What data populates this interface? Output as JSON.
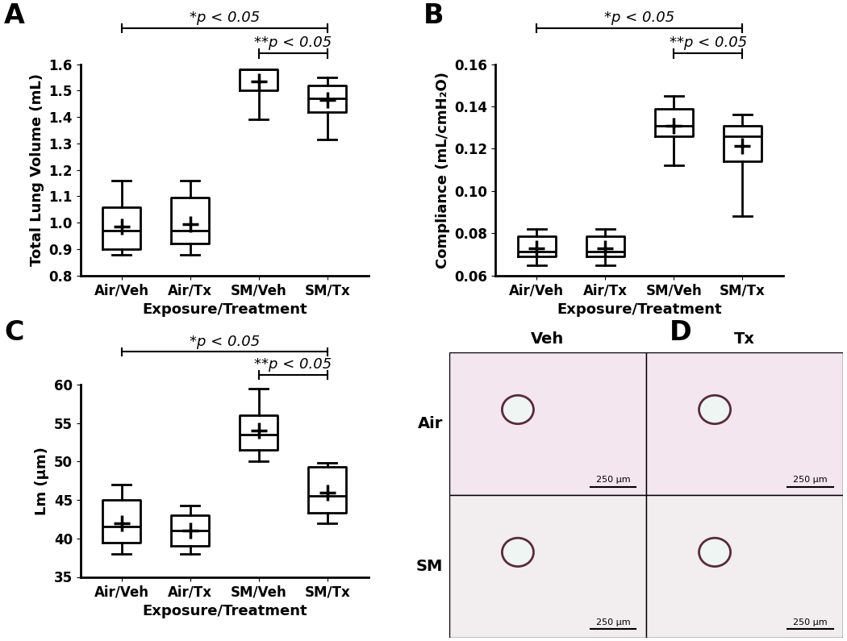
{
  "chart_data": [
    {
      "type": "box",
      "panel": "A",
      "ylabel": "Total Lung Volume (mL)",
      "xlabel": "Exposure/Treatment",
      "categories": [
        "Air/Veh",
        "Air/Tx",
        "SM/Veh",
        "SM/Tx"
      ],
      "boxes": [
        {
          "whislo": 0.88,
          "q1": 0.9,
          "med": 0.97,
          "q3": 1.06,
          "whishi": 1.16,
          "mean": 0.985
        },
        {
          "whislo": 0.88,
          "q1": 0.92,
          "med": 0.97,
          "q3": 1.095,
          "whishi": 1.16,
          "mean": 0.995
        },
        {
          "whislo": 1.39,
          "q1": 1.5,
          "med": 1.58,
          "q3": 1.58,
          "whishi": 1.58,
          "mean": 1.535
        },
        {
          "whislo": 1.315,
          "q1": 1.42,
          "med": 1.47,
          "q3": 1.52,
          "whishi": 1.55,
          "mean": 1.465
        }
      ],
      "ylim": [
        0.8,
        1.6
      ],
      "yticks": [
        0.8,
        0.9,
        {
          "value": 1,
          "label": "1.0"
        },
        1.1,
        1.2,
        1.3,
        1.4,
        1.5,
        1.6
      ],
      "annotations": [
        {
          "text": "*p < 0.05",
          "from": "Air/Veh",
          "to": "SM/Tx"
        },
        {
          "text": "**p < 0.05",
          "from": "SM/Veh",
          "to": "SM/Tx"
        }
      ]
    },
    {
      "type": "box",
      "panel": "B",
      "ylabel": "Compliance (mL/cmH₂O)",
      "xlabel": "Exposure/Treatment",
      "categories": [
        "Air/Veh",
        "Air/Tx",
        "SM/Veh",
        "SM/Tx"
      ],
      "boxes": [
        {
          "whislo": 0.065,
          "q1": 0.069,
          "med": 0.0715,
          "q3": 0.0785,
          "whishi": 0.082,
          "mean": 0.073
        },
        {
          "whislo": 0.065,
          "q1": 0.069,
          "med": 0.0715,
          "q3": 0.0785,
          "whishi": 0.082,
          "mean": 0.073
        },
        {
          "whislo": 0.112,
          "q1": 0.126,
          "med": 0.131,
          "q3": 0.139,
          "whishi": 0.145,
          "mean": 0.131
        },
        {
          "whislo": 0.088,
          "q1": 0.114,
          "med": 0.126,
          "q3": 0.131,
          "whishi": 0.136,
          "mean": 0.1215
        }
      ],
      "ylim": [
        0.06,
        0.16
      ],
      "yticks": [
        0.06,
        0.08,
        {
          "value": 0.1,
          "label": "0.10"
        },
        0.12,
        0.14,
        0.16
      ],
      "annotations": [
        {
          "text": "*p < 0.05",
          "from": "Air/Veh",
          "to": "SM/Tx"
        },
        {
          "text": "**p < 0.05",
          "from": "SM/Veh",
          "to": "SM/Tx"
        }
      ]
    },
    {
      "type": "box",
      "panel": "C",
      "ylabel": "Lm (μm)",
      "xlabel": "Exposure/Treatment",
      "categories": [
        "Air/Veh",
        "Air/Tx",
        "SM/Veh",
        "SM/Tx"
      ],
      "boxes": [
        {
          "whislo": 38,
          "q1": 39.5,
          "med": 41.5,
          "q3": 45,
          "whishi": 47,
          "mean": 42
        },
        {
          "whislo": 38,
          "q1": 39,
          "med": 41,
          "q3": 43,
          "whishi": 44.3,
          "mean": 41
        },
        {
          "whislo": 50,
          "q1": 51.5,
          "med": 53.5,
          "q3": 56,
          "whishi": 59.5,
          "mean": 54
        },
        {
          "whislo": 42,
          "q1": 43.3,
          "med": 45.5,
          "q3": 49.3,
          "whishi": 49.8,
          "mean": 46
        }
      ],
      "ylim": [
        35,
        60
      ],
      "yticks": [
        35,
        40,
        45,
        50,
        55,
        60
      ],
      "annotations": [
        {
          "text": "*p < 0.05",
          "from": "Air/Veh",
          "to": "SM/Tx"
        },
        {
          "text": "**p < 0.05",
          "from": "SM/Veh",
          "to": "SM/Tx"
        }
      ]
    },
    {
      "type": "image_grid",
      "panel": "D",
      "columns": [
        "Veh",
        "Tx"
      ],
      "rows": [
        "Air",
        "SM"
      ],
      "scale_bar_label": "250 µm"
    }
  ]
}
